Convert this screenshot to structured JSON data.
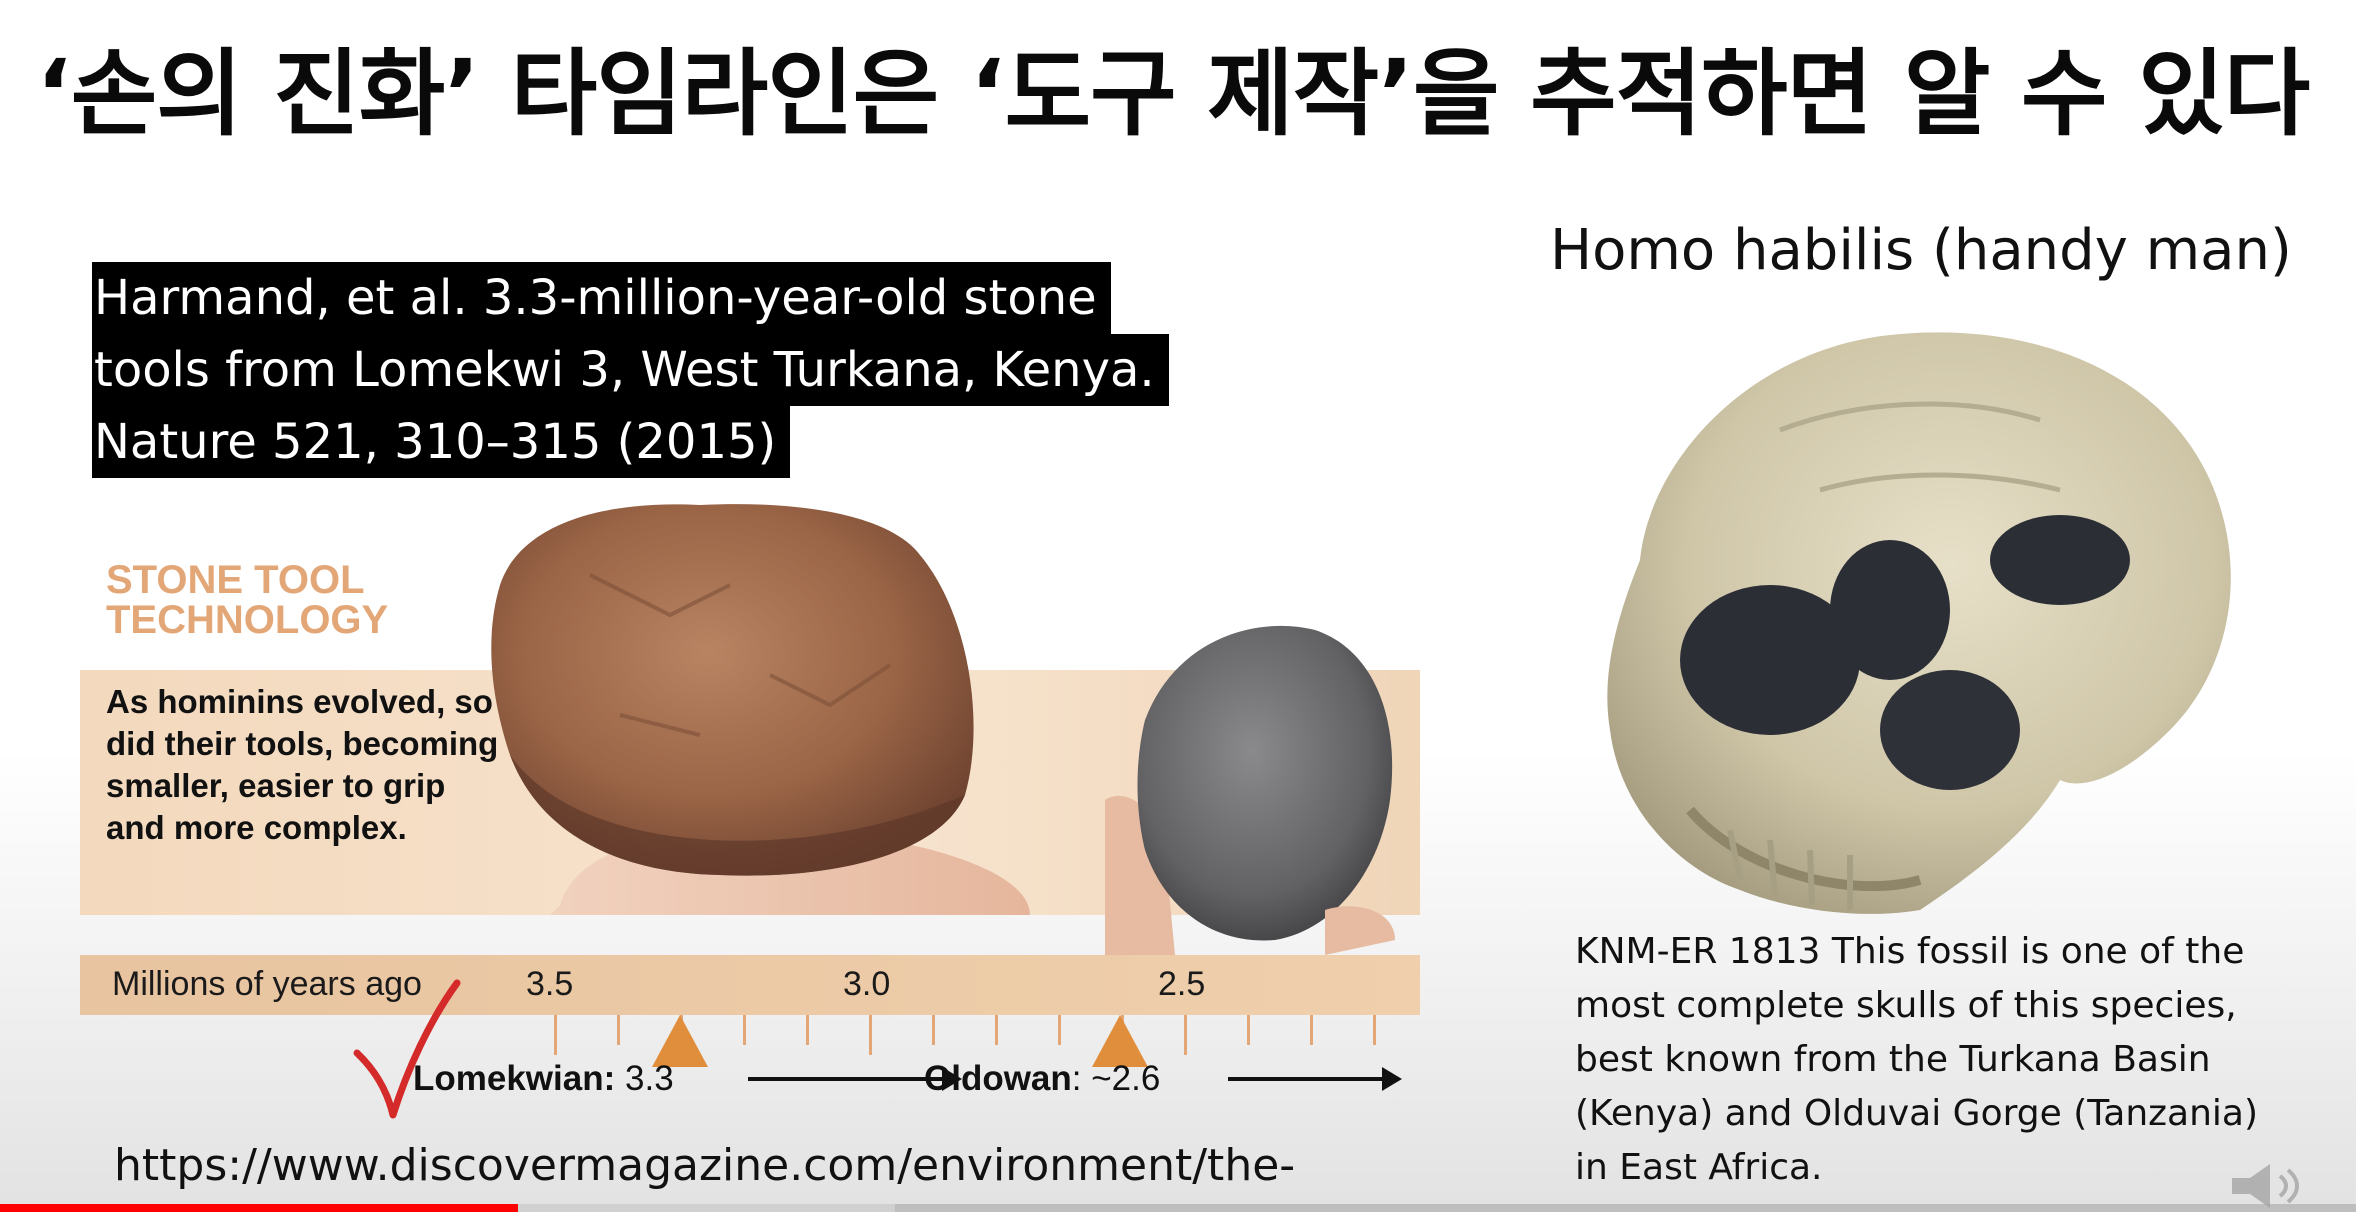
{
  "slide": {
    "title": "‘손의 진화’ 타임라인은 ‘도구 제작’을 추적하면 알 수 있다",
    "reference_lines": [
      "Harmand, et al. 3.3-million-year-old stone",
      "tools from Lomekwi 3, West Turkana, Kenya.",
      "Nature 521, 310–315 (2015)"
    ],
    "url": "https://www.discovermagazine.com/environment/the-",
    "right_heading": "Homo habilis (handy man)",
    "caption": "KNM-ER 1813 This fossil is one of the most complete skulls of this species, best known from the Turkana Basin (Kenya) and Olduvai Gorge (Tanzania) in East Africa."
  },
  "figure": {
    "tech_title_line1": "STONE TOOL",
    "tech_title_line2": "TECHNOLOGY",
    "tech_text": "As hominins evolved, so did their tools, becoming smaller, easier to grip and more complex.",
    "axis_label": "Millions of years ago",
    "ticks": [
      "3.5",
      "3.0",
      "2.5"
    ],
    "lomekwian_name": "Lomekwian:",
    "lomekwian_value": "3.3",
    "oldowan_name": "Oldowan",
    "oldowan_value": ": ~2.6",
    "colors": {
      "accent": "#e08e3c",
      "band": "#f5dfc6",
      "check": "#d42a2a"
    }
  },
  "player": {
    "progress_fraction": 0.22,
    "buffered_fraction": 0.38,
    "icons": [
      "volume-icon"
    ]
  }
}
